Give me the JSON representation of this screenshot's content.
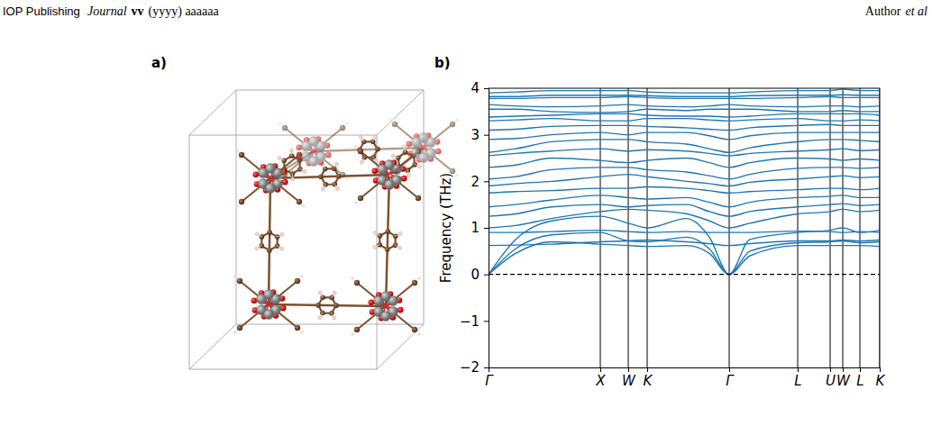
{
  "header": {
    "publisher": "IOP Publishing",
    "journal": "Journal",
    "volume": "vv",
    "reference": "(yyyy) aaaaaa",
    "author": "Author",
    "etal": "et al"
  },
  "panels": {
    "a": {
      "label": "a)"
    },
    "b": {
      "label": "b)"
    }
  },
  "chart_data": {
    "type": "line",
    "ylabel": "Frequency (THz)",
    "color": "#1f77b4",
    "grid": "x",
    "tick_labels": true,
    "baseline": {
      "y": 0,
      "color": "#000000",
      "line_style": "dashed"
    },
    "xlim": [
      0,
      4.34
    ],
    "xticks": [
      {
        "value": 0,
        "label": "Γ"
      },
      {
        "value": 1.24,
        "label": "X"
      },
      {
        "value": 1.55,
        "label": "W"
      },
      {
        "value": 1.76,
        "label": "K"
      },
      {
        "value": 2.67,
        "label": "Γ"
      },
      {
        "value": 3.43,
        "label": "L"
      },
      {
        "value": 3.79,
        "label": "U"
      },
      {
        "value": 3.93,
        "label": "W"
      },
      {
        "value": 4.12,
        "label": "L"
      },
      {
        "value": 4.34,
        "label": "K"
      }
    ],
    "ylim": [
      -2,
      4
    ],
    "yticks": [
      {
        "value": -2,
        "label": "−2"
      },
      {
        "value": -1,
        "label": "−1"
      },
      0,
      1,
      2,
      3,
      4
    ],
    "x": [
      0,
      0.3,
      0.7,
      1.24,
      1.55,
      1.76,
      2.2,
      2.45,
      2.67,
      2.9,
      3.43,
      3.79,
      3.93,
      4.12,
      4.34
    ],
    "series": [
      {
        "values": [
          0,
          0.45,
          0.7,
          0.65,
          0.62,
          0.6,
          0.62,
          0.45,
          0,
          0.4,
          0.62,
          0.62,
          0.62,
          0.62,
          0.6
        ]
      },
      {
        "values": [
          0,
          0.55,
          0.85,
          0.9,
          0.72,
          0.7,
          0.8,
          0.55,
          0,
          0.5,
          0.68,
          0.7,
          0.72,
          0.68,
          0.7
        ]
      },
      {
        "values": [
          0,
          0.75,
          1.15,
          1.25,
          1.1,
          1.0,
          1.2,
          0.8,
          0,
          0.75,
          0.9,
          0.95,
          1.0,
          0.9,
          0.95
        ]
      },
      {
        "values": [
          0.62,
          0.63,
          0.65,
          0.7,
          0.72,
          0.74,
          0.7,
          0.66,
          0.62,
          0.66,
          0.72,
          0.72,
          0.74,
          0.72,
          0.74
        ]
      },
      {
        "values": [
          0.9,
          0.9,
          0.92,
          0.95,
          0.92,
          0.9,
          0.92,
          0.9,
          0.9,
          0.9,
          0.93,
          0.92,
          0.9,
          0.92,
          0.9
        ]
      },
      {
        "values": [
          1.0,
          1.05,
          1.2,
          1.35,
          1.4,
          1.38,
          1.3,
          1.15,
          1.0,
          1.1,
          1.3,
          1.35,
          1.4,
          1.35,
          1.38
        ]
      },
      {
        "values": [
          1.25,
          1.3,
          1.45,
          1.5,
          1.45,
          1.48,
          1.5,
          1.35,
          1.25,
          1.35,
          1.45,
          1.5,
          1.52,
          1.48,
          1.5
        ]
      },
      {
        "values": [
          1.45,
          1.5,
          1.6,
          1.7,
          1.65,
          1.62,
          1.65,
          1.55,
          1.45,
          1.55,
          1.65,
          1.68,
          1.7,
          1.65,
          1.65
        ]
      },
      {
        "values": [
          1.75,
          1.78,
          1.8,
          1.85,
          1.85,
          1.88,
          1.85,
          1.8,
          1.75,
          1.78,
          1.82,
          1.85,
          1.85,
          1.82,
          1.85
        ]
      },
      {
        "values": [
          1.9,
          1.95,
          2.0,
          2.1,
          2.15,
          2.1,
          2.0,
          1.95,
          1.9,
          1.98,
          2.05,
          2.1,
          2.12,
          2.08,
          2.1
        ]
      },
      {
        "values": [
          2.05,
          2.1,
          2.25,
          2.3,
          2.3,
          2.25,
          2.2,
          2.12,
          2.05,
          2.15,
          2.28,
          2.3,
          2.3,
          2.28,
          2.3
        ]
      },
      {
        "values": [
          2.3,
          2.35,
          2.5,
          2.45,
          2.4,
          2.45,
          2.5,
          2.4,
          2.3,
          2.4,
          2.5,
          2.48,
          2.45,
          2.48,
          2.45
        ]
      },
      {
        "values": [
          2.55,
          2.6,
          2.65,
          2.7,
          2.65,
          2.68,
          2.65,
          2.6,
          2.55,
          2.6,
          2.65,
          2.68,
          2.7,
          2.66,
          2.68
        ]
      },
      {
        "values": [
          2.62,
          2.7,
          2.85,
          2.9,
          2.9,
          2.85,
          2.8,
          2.7,
          2.62,
          2.72,
          2.85,
          2.9,
          2.9,
          2.88,
          2.85
        ]
      },
      {
        "values": [
          2.9,
          2.92,
          3.0,
          3.05,
          3.0,
          3.05,
          3.05,
          2.98,
          2.9,
          2.98,
          3.05,
          3.05,
          3.05,
          3.05,
          3.05
        ]
      },
      {
        "values": [
          3.1,
          3.12,
          3.18,
          3.2,
          3.2,
          3.18,
          3.15,
          3.12,
          3.1,
          3.15,
          3.2,
          3.22,
          3.2,
          3.2,
          3.2
        ]
      },
      {
        "values": [
          3.3,
          3.32,
          3.35,
          3.3,
          3.3,
          3.35,
          3.35,
          3.32,
          3.3,
          3.32,
          3.35,
          3.3,
          3.3,
          3.32,
          3.3
        ]
      },
      {
        "values": [
          3.38,
          3.4,
          3.42,
          3.45,
          3.45,
          3.42,
          3.4,
          3.4,
          3.38,
          3.4,
          3.45,
          3.45,
          3.45,
          3.45,
          3.42
        ]
      },
      {
        "values": [
          3.55,
          3.55,
          3.5,
          3.48,
          3.5,
          3.55,
          3.52,
          3.55,
          3.55,
          3.55,
          3.5,
          3.5,
          3.52,
          3.5,
          3.5
        ]
      },
      {
        "values": [
          3.65,
          3.62,
          3.6,
          3.62,
          3.65,
          3.62,
          3.6,
          3.62,
          3.65,
          3.62,
          3.6,
          3.62,
          3.62,
          3.6,
          3.62
        ]
      },
      {
        "values": [
          3.78,
          3.78,
          3.8,
          3.8,
          3.82,
          3.8,
          3.78,
          3.78,
          3.78,
          3.78,
          3.8,
          3.82,
          3.8,
          3.8,
          3.8
        ]
      },
      {
        "values": [
          3.82,
          3.82,
          3.85,
          3.85,
          3.85,
          3.84,
          3.82,
          3.82,
          3.82,
          3.84,
          3.85,
          3.85,
          3.86,
          3.85,
          3.85
        ]
      },
      {
        "values": [
          3.9,
          3.92,
          3.95,
          3.95,
          3.95,
          3.92,
          3.9,
          3.9,
          3.9,
          3.92,
          3.95,
          3.95,
          3.98,
          3.95,
          3.95
        ]
      }
    ]
  }
}
